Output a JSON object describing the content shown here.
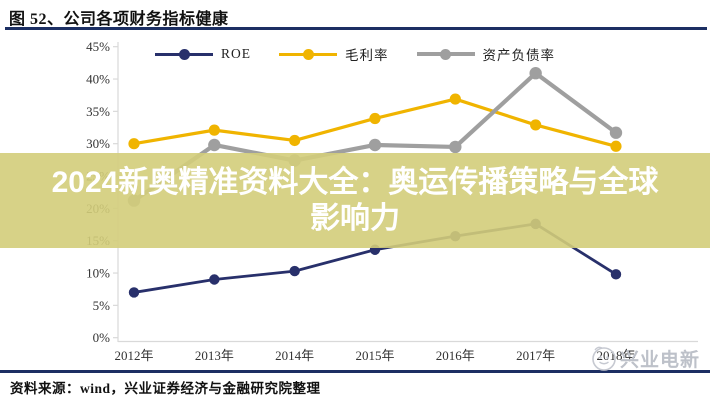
{
  "header": {
    "title": "图 52、公司各项财务指标健康"
  },
  "legend": [
    {
      "label": "ROE",
      "color": "#28306b"
    },
    {
      "label": "毛利率",
      "color": "#f0b400"
    },
    {
      "label": "资产负债率",
      "color": "#9f9f9f"
    }
  ],
  "chart_data": {
    "type": "line",
    "x": [
      "2012年",
      "2013年",
      "2014年",
      "2015年",
      "2016年",
      "2017年",
      "2018年"
    ],
    "series": [
      {
        "name": "ROE",
        "color": "#28306b",
        "values": [
          7.0,
          9.0,
          10.3,
          13.6,
          15.7,
          17.6,
          9.8
        ]
      },
      {
        "name": "毛利率",
        "color": "#f0b400",
        "values": [
          30.0,
          32.1,
          30.5,
          33.9,
          36.9,
          32.9,
          29.6
        ]
      },
      {
        "name": "资产负债率",
        "color": "#9f9f9f",
        "values": [
          21.2,
          29.8,
          27.4,
          29.8,
          29.5,
          40.9,
          31.7
        ]
      }
    ],
    "ylim": [
      0,
      45
    ],
    "ytick_labels": [
      "0%",
      "5%",
      "10%",
      "15%",
      "20%",
      "25%",
      "30%",
      "35%",
      "40%",
      "45%"
    ],
    "grid": false,
    "legend_position": "top-center"
  },
  "overlay_banner": {
    "line1": "2024新奥精准资料大全：奥运传播策略与全球",
    "line2": "影响力",
    "bg": "#d3cd7a",
    "text_color": "#ffffff"
  },
  "source_note": "资料来源：wind，兴业证券经济与金融研究院整理",
  "watermark": {
    "text": "兴业电新"
  },
  "colors": {
    "rule_navy": "#1c2f63",
    "axis_gray": "#d9d9d9",
    "label_text": "#333333",
    "watermark_gray": "#bdc1c9"
  }
}
